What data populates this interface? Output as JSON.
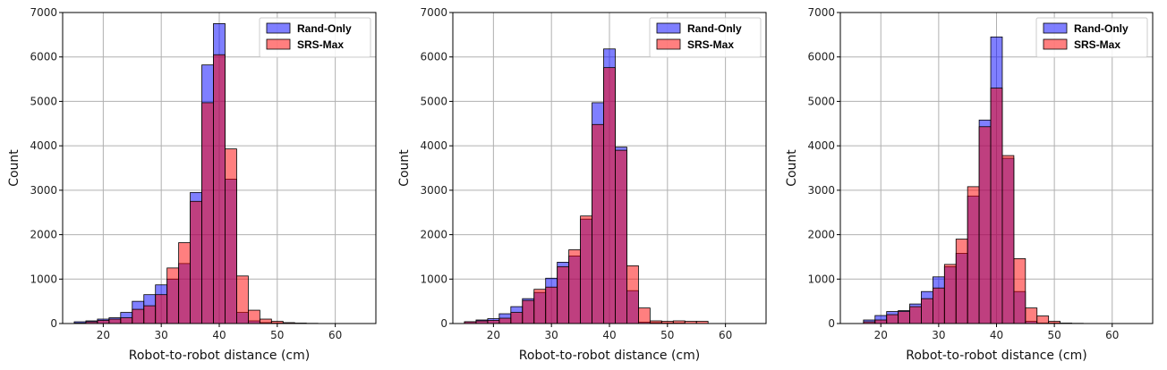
{
  "chart_data": [
    {
      "type": "bar",
      "xlabel": "Robot-to-robot distance (cm)",
      "ylabel": "Count",
      "xlim": [
        13,
        67
      ],
      "ylim": [
        0,
        7000
      ],
      "xticks": [
        20,
        30,
        40,
        50,
        60
      ],
      "yticks": [
        0,
        1000,
        2000,
        3000,
        4000,
        5000,
        6000,
        7000
      ],
      "grid": true,
      "legend_position": "top-right",
      "bin_width": 2,
      "bin_edges": [
        15,
        17,
        19,
        21,
        23,
        25,
        27,
        29,
        31,
        33,
        35,
        37,
        39,
        41,
        43,
        45,
        47,
        49,
        51,
        53,
        55,
        57,
        59,
        61,
        63
      ],
      "series": [
        {
          "name": "Rand-Only",
          "color": "#0000ff",
          "values": [
            40,
            60,
            100,
            130,
            250,
            500,
            650,
            870,
            1000,
            1350,
            2950,
            5820,
            6750,
            3250,
            250,
            60,
            20,
            10,
            5,
            0,
            0,
            0,
            0,
            0
          ]
        },
        {
          "name": "SRS-Max",
          "color": "#ff0000",
          "values": [
            10,
            40,
            70,
            100,
            130,
            320,
            400,
            650,
            1250,
            1820,
            2750,
            4970,
            6050,
            3930,
            1070,
            300,
            100,
            50,
            20,
            10,
            5,
            0,
            0,
            0
          ]
        }
      ]
    },
    {
      "type": "bar",
      "xlabel": "Robot-to-robot distance (cm)",
      "ylabel": "Count",
      "xlim": [
        13,
        67
      ],
      "ylim": [
        0,
        7000
      ],
      "xticks": [
        20,
        30,
        40,
        50,
        60
      ],
      "yticks": [
        0,
        1000,
        2000,
        3000,
        4000,
        5000,
        6000,
        7000
      ],
      "grid": true,
      "legend_position": "top-right",
      "bin_width": 2,
      "bin_edges": [
        15,
        17,
        19,
        21,
        23,
        25,
        27,
        29,
        31,
        33,
        35,
        37,
        39,
        41,
        43,
        45,
        47,
        49,
        51,
        53,
        55,
        57,
        59,
        61,
        63
      ],
      "series": [
        {
          "name": "Rand-Only",
          "color": "#0000ff",
          "values": [
            40,
            80,
            110,
            220,
            380,
            560,
            700,
            1020,
            1380,
            1520,
            2350,
            4970,
            6180,
            3970,
            740,
            30,
            20,
            10,
            10,
            0,
            0,
            0,
            0,
            0
          ]
        },
        {
          "name": "SRS-Max",
          "color": "#ff0000",
          "values": [
            40,
            60,
            70,
            120,
            250,
            520,
            770,
            820,
            1280,
            1660,
            2420,
            4480,
            5760,
            3900,
            1300,
            350,
            60,
            50,
            60,
            50,
            50,
            0,
            0,
            0
          ]
        }
      ]
    },
    {
      "type": "bar",
      "xlabel": "Robot-to-robot distance (cm)",
      "ylabel": "Count",
      "xlim": [
        13,
        67
      ],
      "ylim": [
        0,
        7000
      ],
      "xticks": [
        20,
        30,
        40,
        50,
        60
      ],
      "yticks": [
        0,
        1000,
        2000,
        3000,
        4000,
        5000,
        6000,
        7000
      ],
      "grid": true,
      "legend_position": "top-right",
      "bin_width": 2,
      "bin_edges": [
        15,
        17,
        19,
        21,
        23,
        25,
        27,
        29,
        31,
        33,
        35,
        37,
        39,
        41,
        43,
        45,
        47,
        49,
        51,
        53,
        55,
        57,
        59,
        61,
        63
      ],
      "series": [
        {
          "name": "Rand-Only",
          "color": "#0000ff",
          "values": [
            0,
            80,
            180,
            270,
            290,
            440,
            720,
            1050,
            1280,
            1580,
            2870,
            4580,
            6450,
            3720,
            720,
            50,
            10,
            10,
            0,
            0,
            0,
            0,
            0,
            0
          ]
        },
        {
          "name": "SRS-Max",
          "color": "#ff0000",
          "values": [
            0,
            40,
            80,
            200,
            270,
            380,
            560,
            800,
            1330,
            1900,
            3080,
            4430,
            5300,
            3780,
            1460,
            350,
            170,
            50,
            10,
            5,
            0,
            0,
            0,
            0
          ]
        }
      ]
    }
  ]
}
